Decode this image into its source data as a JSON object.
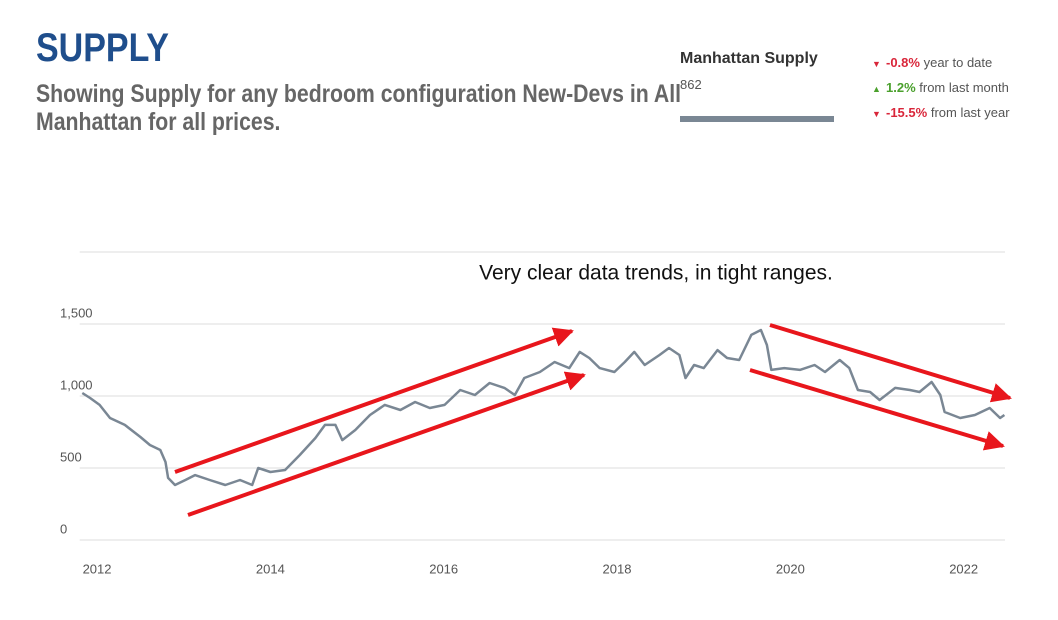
{
  "header": {
    "title": "SUPPLY",
    "subtitle": "Showing Supply for any bedroom configuration New-Devs in All Manhattan for all prices."
  },
  "panel": {
    "name": "Manhattan Supply",
    "value": "862",
    "stats": [
      {
        "change": "-0.8%",
        "label": "year to date"
      },
      {
        "change": "1.2%",
        "label": "from last month"
      },
      {
        "change": "-15.5%",
        "label": "from last year"
      }
    ]
  },
  "chart_data": {
    "type": "line",
    "annotation": "Very clear data trends, in tight ranges.",
    "xlim": [
      2011.8,
      2022.5
    ],
    "xticks": [
      2012,
      2014,
      2016,
      2018,
      2020,
      2022
    ],
    "ylim": [
      0,
      2000
    ],
    "yticks": [
      0,
      500,
      {
        "value": 1000,
        "label": "1,000"
      },
      {
        "value": 1500,
        "label": "1,500"
      }
    ],
    "grid": true,
    "series": [
      {
        "color": "#7a8794",
        "x": [
          2011.83,
          2011.92,
          2012.03,
          2012.15,
          2012.32,
          2012.5,
          2012.61,
          2012.73,
          2012.79,
          2012.82,
          2012.9,
          2013.02,
          2013.13,
          2013.3,
          2013.48,
          2013.65,
          2013.79,
          2013.86,
          2014.0,
          2014.17,
          2014.34,
          2014.52,
          2014.63,
          2014.75,
          2014.83,
          2014.98,
          2015.15,
          2015.32,
          2015.5,
          2015.67,
          2015.84,
          2016.01,
          2016.19,
          2016.36,
          2016.53,
          2016.7,
          2016.82,
          2016.93,
          2017.11,
          2017.28,
          2017.45,
          2017.57,
          2017.68,
          2017.8,
          2017.97,
          2018.09,
          2018.2,
          2018.32,
          2018.49,
          2018.6,
          2018.72,
          2018.79,
          2018.89,
          2019.0,
          2019.16,
          2019.27,
          2019.41,
          2019.55,
          2019.66,
          2019.73,
          2019.78,
          2019.93,
          2020.11,
          2020.28,
          2020.4,
          2020.57,
          2020.68,
          2020.78,
          2020.92,
          2021.03,
          2021.21,
          2021.38,
          2021.49,
          2021.63,
          2021.73,
          2021.78,
          2021.96,
          2022.13,
          2022.3,
          2022.42,
          2022.47
        ],
        "values": [
          1021,
          986,
          938,
          847,
          799,
          715,
          660,
          625,
          542,
          431,
          382,
          417,
          451,
          417,
          382,
          417,
          382,
          500,
          472,
          486,
          590,
          708,
          799,
          799,
          694,
          764,
          868,
          938,
          903,
          958,
          917,
          938,
          1042,
          1007,
          1090,
          1056,
          1007,
          1125,
          1167,
          1236,
          1194,
          1306,
          1264,
          1194,
          1167,
          1236,
          1306,
          1215,
          1285,
          1333,
          1285,
          1125,
          1215,
          1194,
          1319,
          1264,
          1250,
          1424,
          1458,
          1354,
          1181,
          1194,
          1181,
          1215,
          1167,
          1250,
          1194,
          1042,
          1028,
          972,
          1056,
          1042,
          1028,
          1097,
          1007,
          889,
          847,
          868,
          917,
          847,
          868
        ]
      }
    ]
  }
}
